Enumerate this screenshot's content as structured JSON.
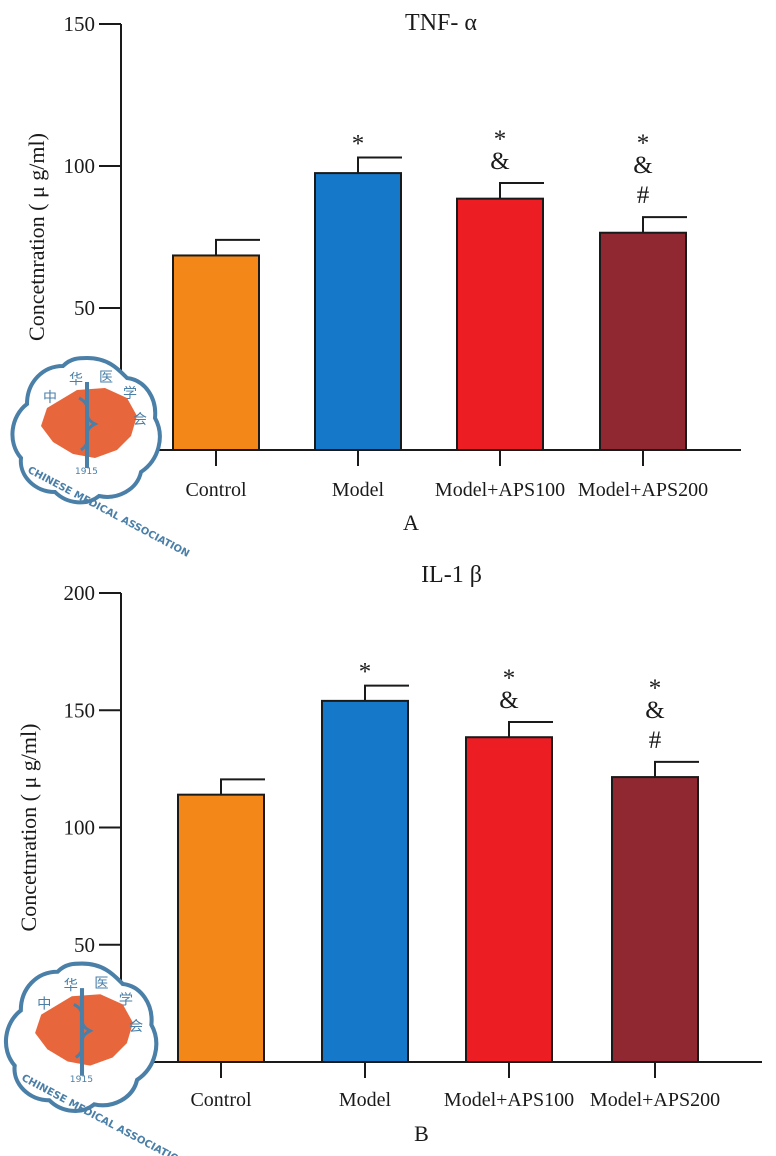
{
  "chart_data": [
    {
      "type": "bar",
      "panel_label": "A",
      "title": "TNF- α",
      "xlabel": "",
      "ylabel": "Concetnration ( μ g/ml)",
      "ylim": [
        0,
        150
      ],
      "yticks": [
        0,
        50,
        100,
        150
      ],
      "categories": [
        "Control",
        "Model",
        "Model+APS100",
        "Model+APS200"
      ],
      "values": [
        68.5,
        97.5,
        88.5,
        76.5
      ],
      "errors": [
        5.5,
        5.5,
        5.5,
        5.5
      ],
      "colors": [
        "#f38818",
        "#1678c8",
        "#ec1e24",
        "#8f2831"
      ],
      "annotations": [
        [],
        [
          "*"
        ],
        [
          "*",
          "&"
        ],
        [
          "*",
          "&",
          "#"
        ]
      ]
    },
    {
      "type": "bar",
      "panel_label": "B",
      "title": "IL-1 β",
      "xlabel": "",
      "ylabel": "Concetnration ( μ g/ml)",
      "ylim": [
        0,
        200
      ],
      "yticks": [
        0,
        50,
        100,
        150,
        200
      ],
      "categories": [
        "Control",
        "Model",
        "Model+APS100",
        "Model+APS200"
      ],
      "values": [
        114,
        154,
        138.5,
        121.5
      ],
      "errors": [
        6.5,
        6.5,
        6.5,
        6.5
      ],
      "colors": [
        "#f38818",
        "#1678c8",
        "#ec1e24",
        "#8f2831"
      ],
      "annotations": [
        [],
        [
          "*"
        ],
        [
          "*",
          "&"
        ],
        [
          "*",
          "&",
          "#"
        ]
      ]
    }
  ],
  "watermark": {
    "text": "中华医学会 CHINESE MEDICAL ASSOCIATION 1915"
  },
  "colors": {
    "axis": "#1a1a1a",
    "seal_ring": "#4a7fa8",
    "seal_map": "#e8663c"
  }
}
